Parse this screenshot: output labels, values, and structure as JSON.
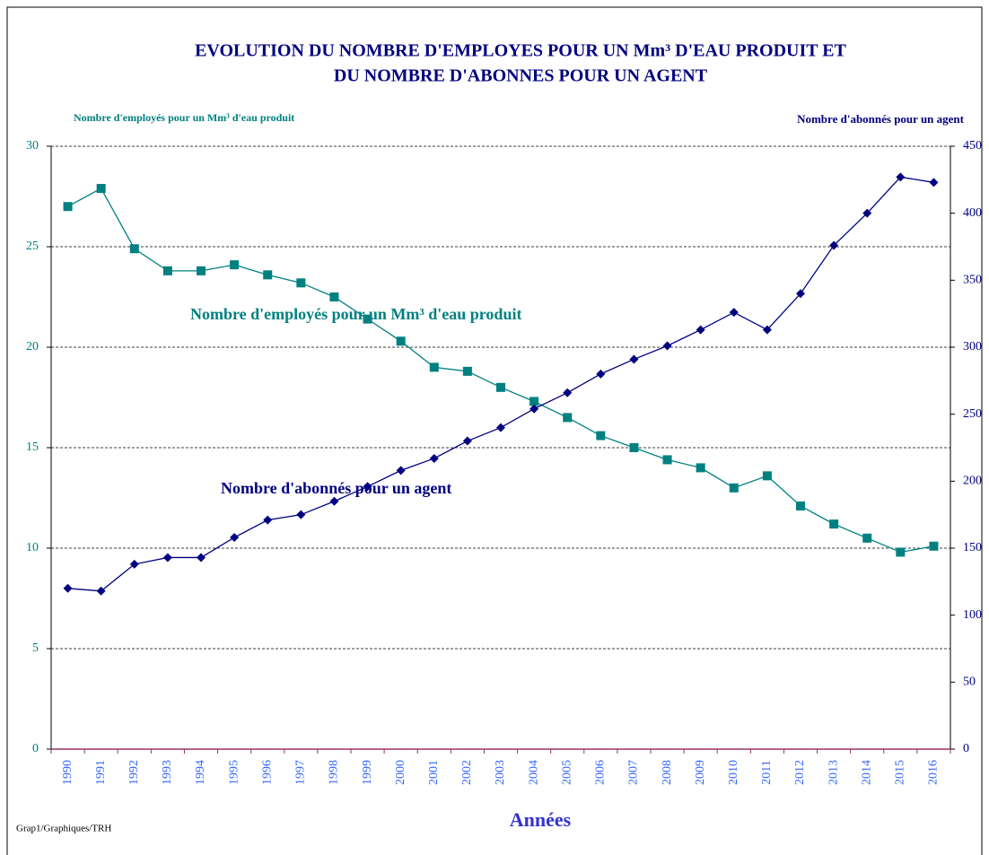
{
  "chart_data": {
    "type": "line",
    "title": [
      "EVOLUTION DU NOMBRE D'EMPLOYES POUR UN Mm³ D'EAU PRODUIT ET",
      "DU NOMBRE D'ABONNES POUR UN AGENT"
    ],
    "ylabel": "Nombre d'employés pour un Mm³ d'eau produit",
    "y2label": "Nombre d'abonnés pour un agent",
    "xlabel": "Années",
    "footnote": "Grap1/Graphiques/TRH",
    "annotations": [
      "Nombre d'employés pour un Mm³ d'eau produit",
      "Nombre d'abonnés pour un agent"
    ],
    "categories": [
      "1990",
      "1991",
      "1992",
      "1993",
      "1994",
      "1995",
      "1996",
      "1997",
      "1998",
      "1999",
      "2000",
      "2001",
      "2002",
      "2003",
      "2004",
      "2005",
      "2006",
      "2007",
      "2008",
      "2009",
      "2010",
      "2011",
      "2012",
      "2013",
      "2014",
      "2015",
      "2016"
    ],
    "series": [
      {
        "name": "Nombre d'employés pour un Mm³ d'eau produit",
        "color": "#008080",
        "marker": "square",
        "values": [
          27.0,
          27.9,
          24.9,
          23.8,
          23.8,
          24.1,
          23.6,
          23.2,
          22.5,
          21.4,
          20.3,
          19.0,
          18.8,
          18.0,
          17.3,
          16.5,
          15.6,
          15.0,
          14.4,
          14.0,
          13.0,
          13.6,
          12.1,
          11.2,
          10.5,
          9.8,
          10.1
        ]
      },
      {
        "name": "Nombre d'abonnés pour un agent",
        "color": "#000080",
        "marker": "diamond",
        "axis": "y2",
        "values": [
          120,
          118,
          138,
          143,
          143,
          158,
          171,
          175,
          185,
          196,
          208,
          217,
          230,
          240,
          254,
          266,
          280,
          291,
          301,
          313,
          326,
          313,
          340,
          376,
          400,
          427,
          423
        ]
      }
    ],
    "ylim": [
      0,
      30
    ],
    "yticks": [
      0,
      5,
      10,
      15,
      20,
      25,
      30
    ],
    "y2lim": [
      0,
      450
    ],
    "y2ticks": [
      0,
      50,
      100,
      150,
      200,
      250,
      300,
      350,
      400,
      450
    ],
    "grid": true
  }
}
